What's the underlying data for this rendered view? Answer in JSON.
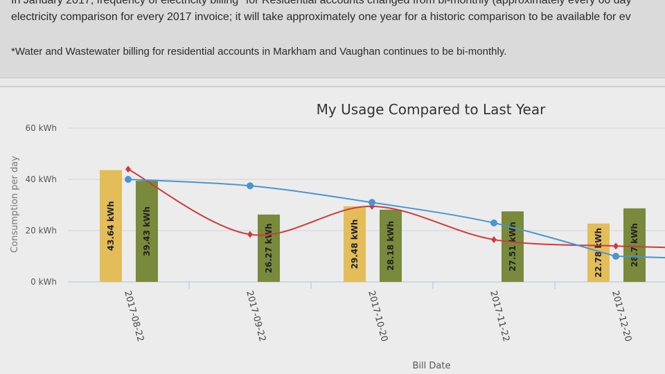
{
  "notice": {
    "line1": "In January 2017, frequency of electricity billing* for Residential accounts changed from bi-monthly (approximately every 60 day",
    "line2": "electricity comparison for every 2017 invoice; it will take approximately one year for a historic comparison to be available for ev",
    "footnote": "*Water and Wastewater billing for residential accounts in Markham and Vaughan continues to be bi-monthly."
  },
  "chart_data": {
    "type": "bar",
    "title": "My Usage Compared to Last Year",
    "xlabel": "Bill Date",
    "ylabel": "Consumption per day",
    "ylim": [
      0,
      60
    ],
    "yticks": [
      "0 kWh",
      "20 kWh",
      "40 kWh",
      "60 kWh"
    ],
    "grid": true,
    "categories": [
      "2017-08-22",
      "2017-09-22",
      "2017-10-20",
      "2017-11-22",
      "2017-12-20"
    ],
    "series": [
      {
        "type": "bar",
        "color": "#e3bd5a",
        "values": [
          43.64,
          null,
          29.48,
          null,
          22.78
        ],
        "labels": [
          "43.64 kWh",
          null,
          "29.48 kWh",
          null,
          "22.78 kWh"
        ]
      },
      {
        "type": "bar",
        "color": "#7a8a3c",
        "values": [
          39.43,
          26.27,
          28.18,
          27.51,
          28.7
        ],
        "labels": [
          "39.43 kWh",
          "26.27 kWh",
          "28.18 kWh",
          "27.51 kWh",
          "28.7 kWh"
        ]
      },
      {
        "type": "line",
        "color": "#cc3a3a",
        "marker": "diamond",
        "values": [
          44,
          18.5,
          29.5,
          16.5,
          14
        ]
      },
      {
        "type": "line",
        "color": "#4a94d0",
        "marker": "circle",
        "values": [
          40,
          37.5,
          31,
          23,
          10
        ]
      }
    ]
  }
}
